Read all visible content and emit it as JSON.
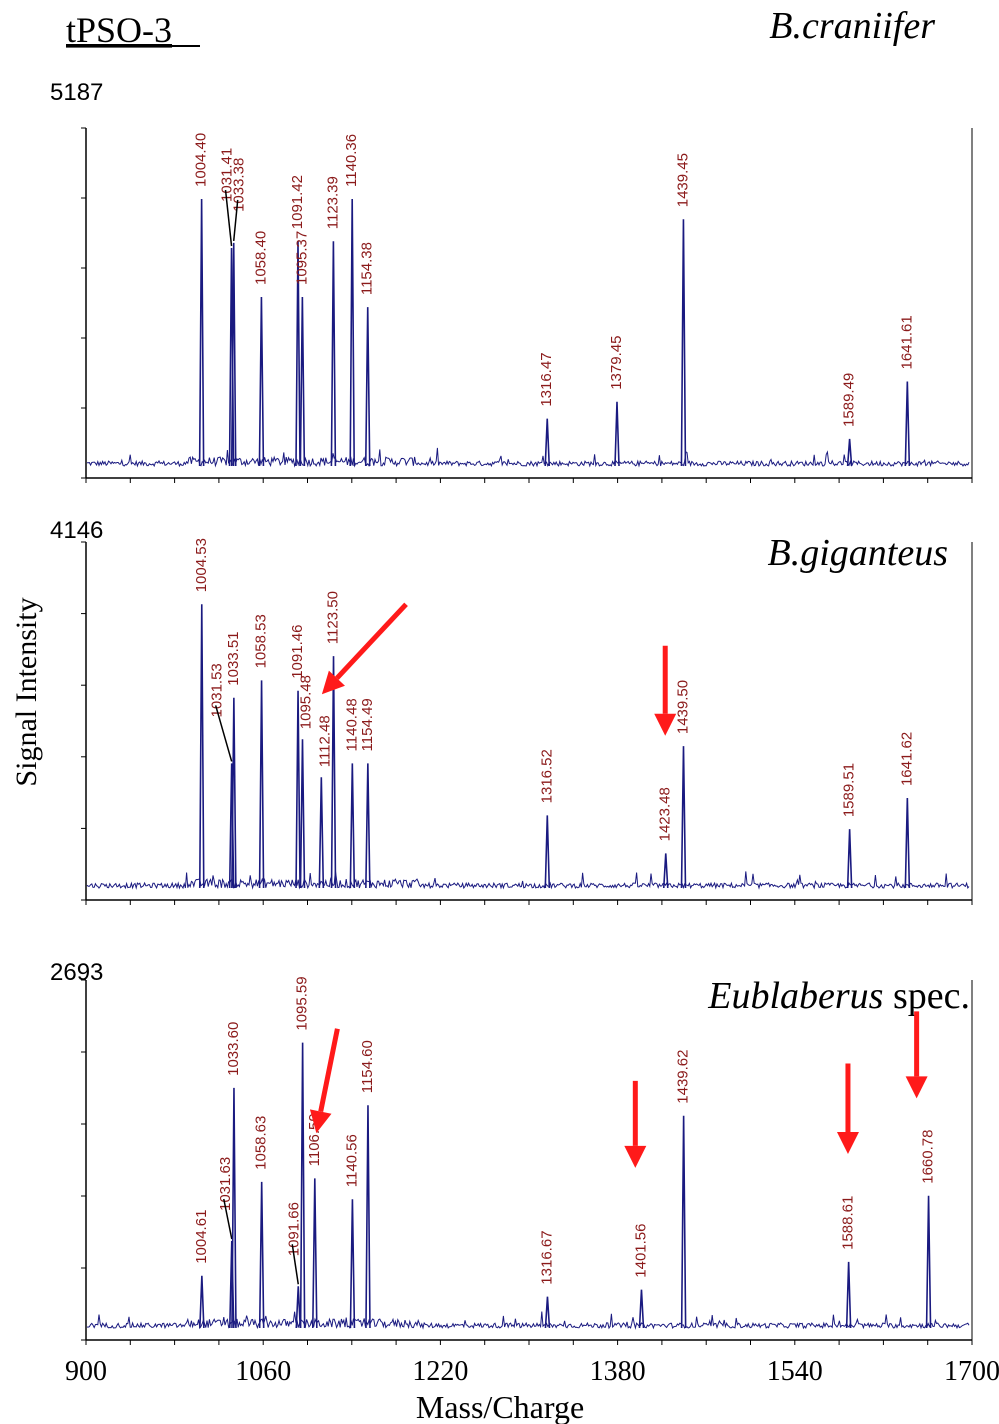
{
  "figure": {
    "label": "tPSO-3",
    "ylabel": "Signal Intensity",
    "xlabel": "Mass/Charge"
  },
  "chart_data": {
    "type": "line",
    "xlim": [
      900,
      1700
    ],
    "x_ticks": [
      900,
      1060,
      1220,
      1380,
      1540,
      1700
    ],
    "panels": [
      {
        "species": "B.craniifer",
        "species_suffix": "",
        "ymax_label": "5187",
        "peaks": [
          {
            "mz": 1004.4,
            "label": "1004.40",
            "rel": 0.79
          },
          {
            "mz": 1031.41,
            "label": "1031.41",
            "rel": 0.645
          },
          {
            "mz": 1033.38,
            "label": "1033.38",
            "rel": 0.66
          },
          {
            "mz": 1058.4,
            "label": "1058.40",
            "rel": 0.5
          },
          {
            "mz": 1091.42,
            "label": "1091.42",
            "rel": 0.665
          },
          {
            "mz": 1095.37,
            "label": "1095.37",
            "rel": 0.5
          },
          {
            "mz": 1123.39,
            "label": "1123.39",
            "rel": 0.665
          },
          {
            "mz": 1140.36,
            "label": "1140.36",
            "rel": 0.79
          },
          {
            "mz": 1154.38,
            "label": "1154.38",
            "rel": 0.47
          },
          {
            "mz": 1316.47,
            "label": "1316.47",
            "rel": 0.14
          },
          {
            "mz": 1379.45,
            "label": "1379.45",
            "rel": 0.19
          },
          {
            "mz": 1439.45,
            "label": "1439.45",
            "rel": 0.73
          },
          {
            "mz": 1589.49,
            "label": "1589.49",
            "rel": 0.08
          },
          {
            "mz": 1641.61,
            "label": "1641.61",
            "rel": 0.25
          }
        ],
        "arrows": []
      },
      {
        "species": "B.giganteus",
        "species_suffix": "",
        "ymax_label": "4146",
        "peaks": [
          {
            "mz": 1004.53,
            "label": "1004.53",
            "rel": 0.82
          },
          {
            "mz": 1031.53,
            "label": "1031.53",
            "rel": 0.36
          },
          {
            "mz": 1033.51,
            "label": "1033.51",
            "rel": 0.55
          },
          {
            "mz": 1058.53,
            "label": "1058.53",
            "rel": 0.6
          },
          {
            "mz": 1091.46,
            "label": "1091.46",
            "rel": 0.57
          },
          {
            "mz": 1095.48,
            "label": "1095.48",
            "rel": 0.43
          },
          {
            "mz": 1112.48,
            "label": "1112.48",
            "rel": 0.32
          },
          {
            "mz": 1123.5,
            "label": "1123.50",
            "rel": 0.67
          },
          {
            "mz": 1140.48,
            "label": "1140.48",
            "rel": 0.36
          },
          {
            "mz": 1154.49,
            "label": "1154.49",
            "rel": 0.36
          },
          {
            "mz": 1316.52,
            "label": "1316.52",
            "rel": 0.21
          },
          {
            "mz": 1423.48,
            "label": "1423.48",
            "rel": 0.1
          },
          {
            "mz": 1439.5,
            "label": "1439.50",
            "rel": 0.41
          },
          {
            "mz": 1589.51,
            "label": "1589.51",
            "rel": 0.17
          },
          {
            "mz": 1641.62,
            "label": "1641.62",
            "rel": 0.26
          }
        ],
        "arrows": [
          {
            "from": [
              1189,
              0.82
            ],
            "to": [
              1113,
              0.56
            ]
          },
          {
            "from": [
              1423,
              0.7
            ],
            "to": [
              1423,
              0.44
            ]
          }
        ]
      },
      {
        "species": "Eublaberus",
        "species_suffix": " spec.",
        "ymax_label": "2693",
        "peaks": [
          {
            "mz": 1004.61,
            "label": "1004.61",
            "rel": 0.15
          },
          {
            "mz": 1031.63,
            "label": "1031.63",
            "rel": 0.25
          },
          {
            "mz": 1033.6,
            "label": "1033.60",
            "rel": 0.69
          },
          {
            "mz": 1058.63,
            "label": "1058.63",
            "rel": 0.42
          },
          {
            "mz": 1091.66,
            "label": "1091.66",
            "rel": 0.12
          },
          {
            "mz": 1095.59,
            "label": "1095.59",
            "rel": 0.82
          },
          {
            "mz": 1106.59,
            "label": "1106.59",
            "rel": 0.43
          },
          {
            "mz": 1140.56,
            "label": "1140.56",
            "rel": 0.37
          },
          {
            "mz": 1154.6,
            "label": "1154.60",
            "rel": 0.64
          },
          {
            "mz": 1316.67,
            "label": "1316.67",
            "rel": 0.09
          },
          {
            "mz": 1401.56,
            "label": "1401.56",
            "rel": 0.11
          },
          {
            "mz": 1439.62,
            "label": "1439.62",
            "rel": 0.61
          },
          {
            "mz": 1588.61,
            "label": "1588.61",
            "rel": 0.19
          },
          {
            "mz": 1660.78,
            "label": "1660.78",
            "rel": 0.38
          }
        ],
        "arrows": [
          {
            "from": [
              1127,
              0.86
            ],
            "to": [
              1108,
              0.56
            ]
          },
          {
            "from": [
              1396,
              0.71
            ],
            "to": [
              1396,
              0.46
            ]
          },
          {
            "from": [
              1588,
              0.76
            ],
            "to": [
              1588,
              0.5
            ]
          },
          {
            "from": [
              1650,
              0.91
            ],
            "to": [
              1650,
              0.66
            ]
          }
        ]
      }
    ]
  }
}
